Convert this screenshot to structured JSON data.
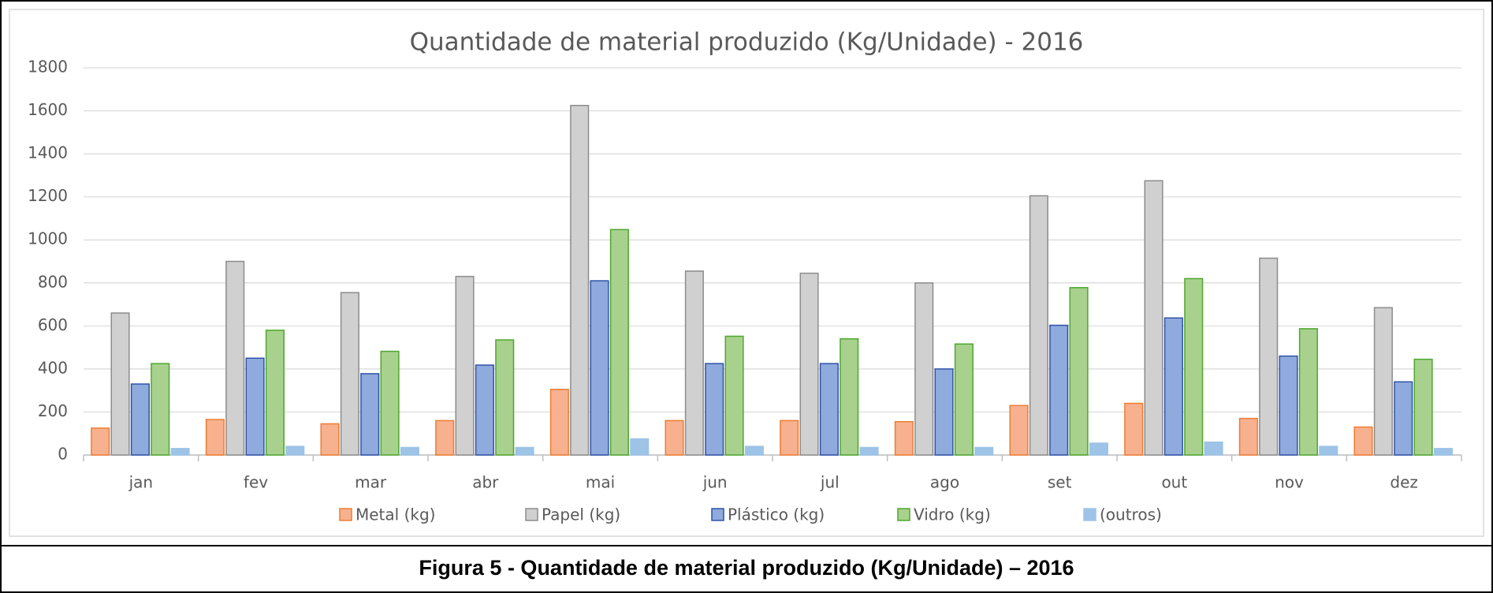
{
  "chart_data": {
    "type": "bar",
    "title": "Quantidade de material produzido (Kg/Unidade) - 2016",
    "categories": [
      "jan",
      "fev",
      "mar",
      "abr",
      "mai",
      "jun",
      "jul",
      "ago",
      "set",
      "out",
      "nov",
      "dez"
    ],
    "series": [
      {
        "name": "Metal (kg)",
        "color": "#f8b18f",
        "edge": "#ed7d31",
        "values": [
          125,
          165,
          145,
          160,
          305,
          160,
          160,
          155,
          230,
          240,
          170,
          130
        ]
      },
      {
        "name": "Papel (kg)",
        "color": "#d0d0d0",
        "edge": "#8c8c8c",
        "values": [
          660,
          900,
          755,
          830,
          1625,
          855,
          845,
          800,
          1205,
          1275,
          915,
          685
        ]
      },
      {
        "name": "Plástico (kg)",
        "color": "#8faadc",
        "edge": "#2f52a8",
        "values": [
          330,
          450,
          378,
          418,
          810,
          425,
          425,
          400,
          603,
          637,
          460,
          340
        ]
      },
      {
        "name": "Vidro (kg)",
        "color": "#a9d18e",
        "edge": "#4ea72e",
        "values": [
          425,
          580,
          482,
          535,
          1048,
          552,
          540,
          516,
          778,
          820,
          587,
          445
        ]
      },
      {
        "name": "(outros)",
        "color": "#9dc3e6",
        "edge": "#9dc3e6",
        "values": [
          30,
          40,
          35,
          35,
          75,
          40,
          35,
          35,
          55,
          60,
          40,
          30
        ]
      }
    ],
    "ylim": [
      0,
      1800
    ],
    "yticks": [
      0,
      200,
      400,
      600,
      800,
      1000,
      1200,
      1400,
      1600,
      1800
    ],
    "grid": true,
    "legend": "bottom",
    "caption": "Figura 5 - Quantidade de material produzido (Kg/Unidade) – 2016"
  }
}
